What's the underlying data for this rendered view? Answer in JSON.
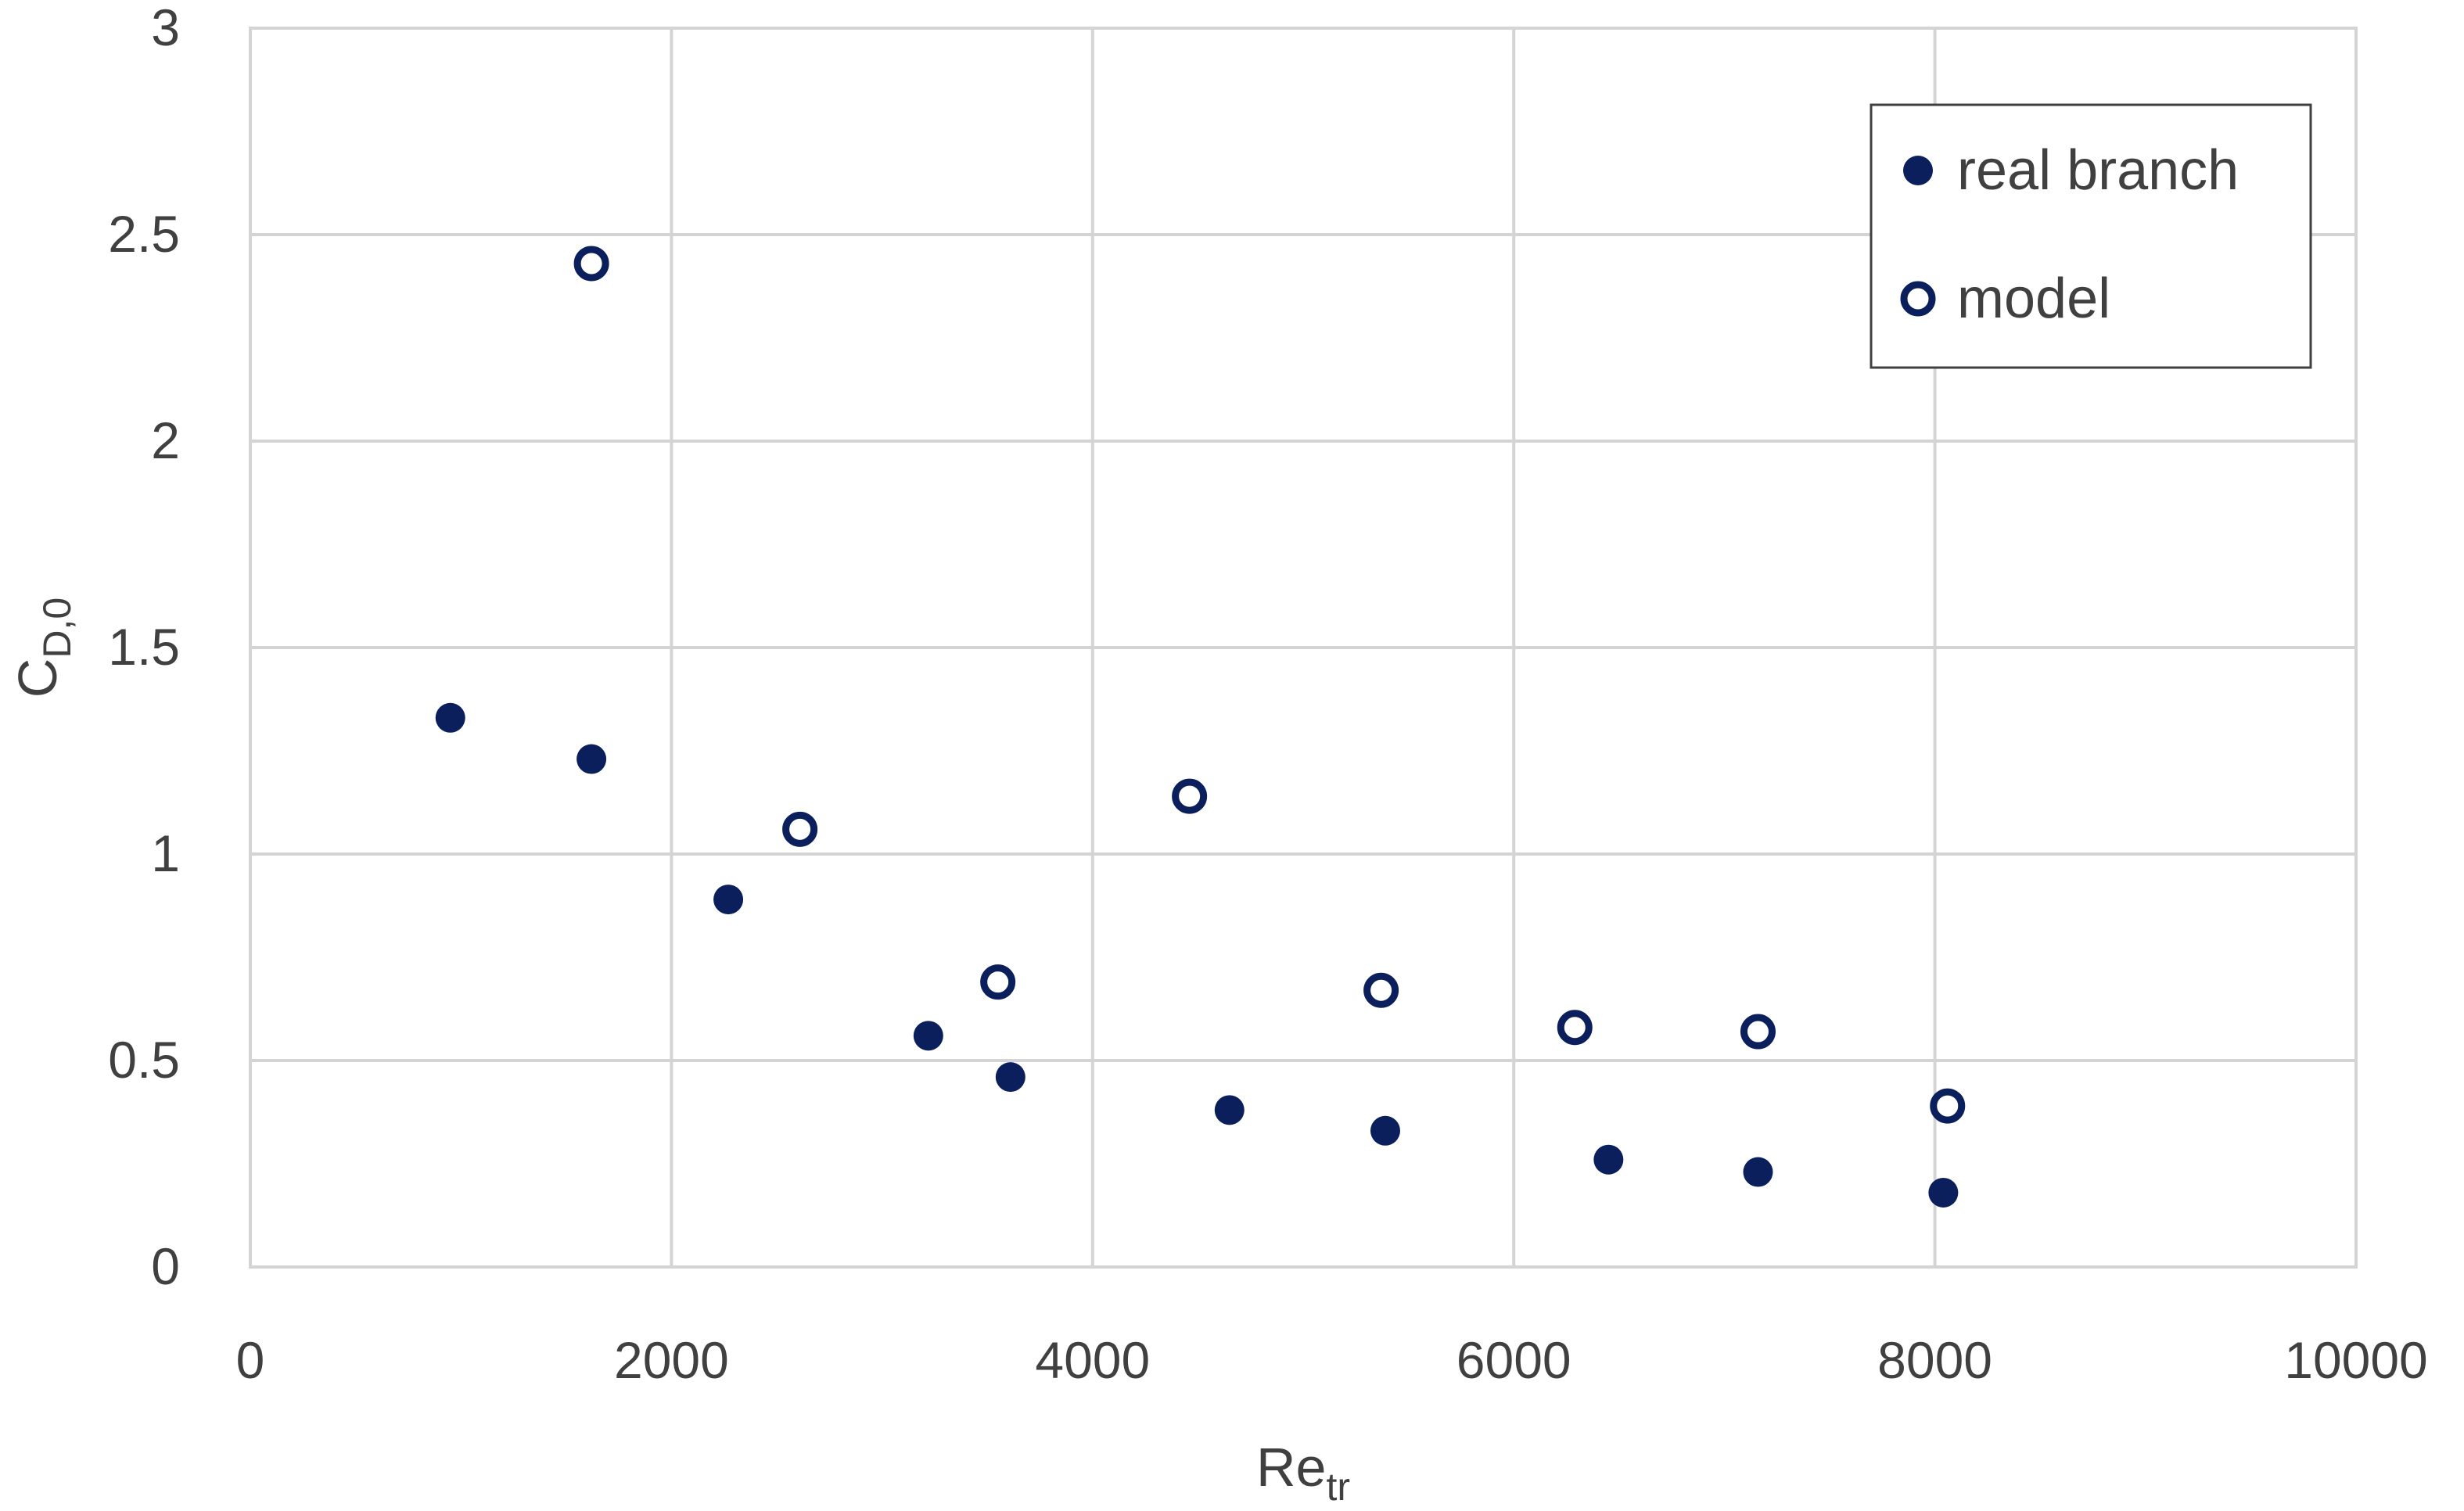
{
  "chart_data": {
    "type": "scatter",
    "xlabel": {
      "base": "Re",
      "sub": "tr"
    },
    "ylabel": {
      "base": "C",
      "sub": "D,0"
    },
    "xlim": [
      0,
      10000
    ],
    "ylim": [
      0,
      3
    ],
    "x_ticks": [
      "0",
      "2000",
      "4000",
      "6000",
      "8000",
      "10000"
    ],
    "y_ticks": [
      "0",
      "0.5",
      "1",
      "1.5",
      "2",
      "2.5",
      "3"
    ],
    "grid": true,
    "legend_position": "top-right",
    "colors": {
      "marker": "#0b1f5c",
      "grid": "#d4d4d4",
      "text": "#404040"
    },
    "series": [
      {
        "name": "real branch",
        "marker": "filled-circle",
        "points": [
          [
            950,
            1.33
          ],
          [
            1620,
            1.23
          ],
          [
            2270,
            0.89
          ],
          [
            3220,
            0.56
          ],
          [
            3610,
            0.46
          ],
          [
            4650,
            0.38
          ],
          [
            5390,
            0.33
          ],
          [
            6450,
            0.26
          ],
          [
            7160,
            0.23
          ],
          [
            8040,
            0.18
          ]
        ]
      },
      {
        "name": "model",
        "marker": "open-circle",
        "points": [
          [
            1620,
            2.43
          ],
          [
            2610,
            1.06
          ],
          [
            3550,
            0.69
          ],
          [
            4460,
            1.14
          ],
          [
            5370,
            0.67
          ],
          [
            6290,
            0.58
          ],
          [
            7160,
            0.57
          ],
          [
            8060,
            0.39
          ]
        ]
      }
    ]
  }
}
